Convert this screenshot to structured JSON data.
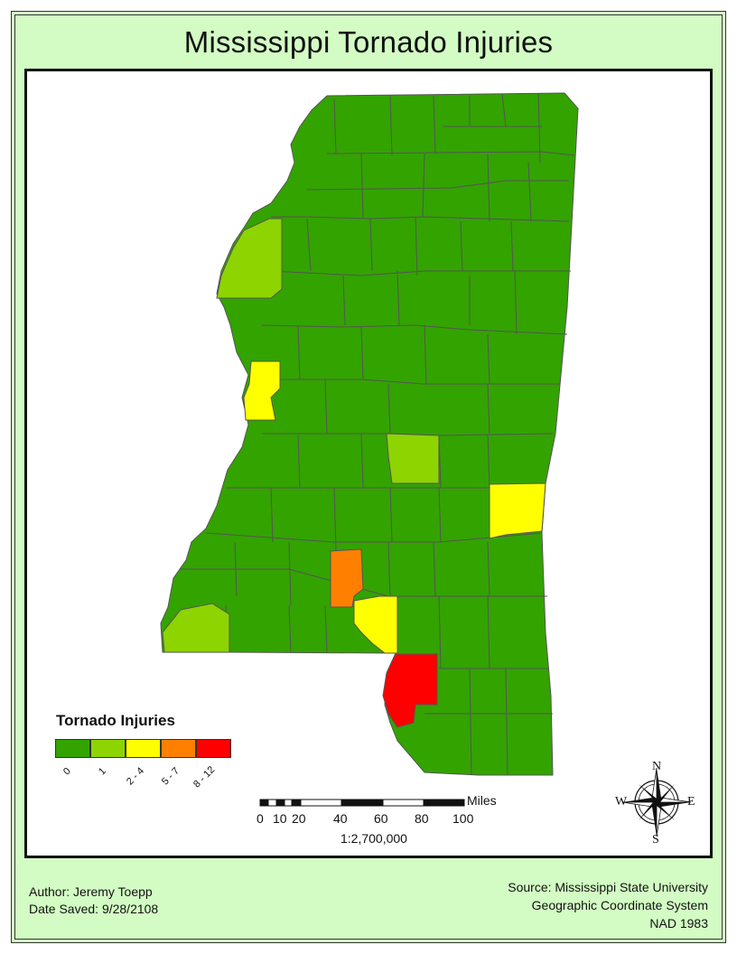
{
  "title": "Mississippi Tornado Injuries",
  "legend": {
    "title": "Tornado Injuries",
    "classes": [
      {
        "label": "0",
        "color": "#33a300"
      },
      {
        "label": "1",
        "color": "#8dd400"
      },
      {
        "label": "2 - 4",
        "color": "#ffff00"
      },
      {
        "label": "5 - 7",
        "color": "#ff8000"
      },
      {
        "label": "8 - 12",
        "color": "#ff0000"
      }
    ]
  },
  "scale": {
    "ticks": [
      "0",
      "10",
      "20",
      "40",
      "60",
      "80",
      "100"
    ],
    "unit": "Miles",
    "ratio": "1:2,700,000"
  },
  "compass": {
    "n": "N",
    "s": "S",
    "e": "E",
    "w": "W"
  },
  "footer": {
    "author": "Author:  Jeremy Toepp",
    "date_saved": "Date Saved:  9/28/2108",
    "source": "Source:  Mississippi State University",
    "coord_system": "Geographic Coordinate System",
    "datum": "NAD 1983"
  },
  "colors": {
    "county_border": "#555555",
    "background": "#d3fcc4"
  }
}
